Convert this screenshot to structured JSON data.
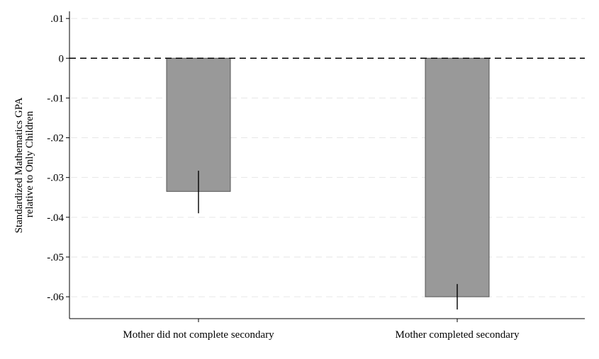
{
  "chart_data": {
    "type": "bar",
    "categories": [
      "Mother did not complete secondary",
      "Mother completed secondary"
    ],
    "values": [
      -0.0335,
      -0.06
    ],
    "error_bars": [
      [
        -0.039,
        -0.0283
      ],
      [
        -0.0632,
        -0.0568
      ]
    ],
    "ylabel_lines": [
      "Standardized Mathematics GPA",
      "relative to Only Children"
    ],
    "yticks": [
      0.01,
      0,
      -0.01,
      -0.02,
      -0.03,
      -0.04,
      -0.05,
      -0.06
    ],
    "ytick_labels": [
      ".01",
      "0",
      "-.01",
      "-.02",
      "-.03",
      "-.04",
      "-.05",
      "-.06"
    ],
    "ylim": [
      -0.0655,
      0.0118
    ],
    "reference_line": 0,
    "grid": true,
    "colors": {
      "bar": "#999999",
      "bar_edge": "#555555",
      "grid": "#e6e6e6",
      "axis": "#000000"
    }
  }
}
